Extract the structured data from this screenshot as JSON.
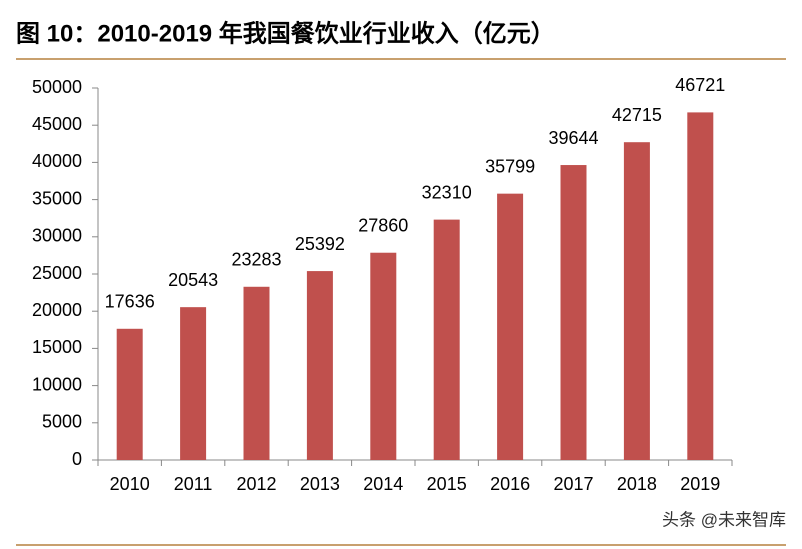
{
  "chart_data": {
    "type": "bar",
    "title": "图 10：2010-2019 年我国餐饮业行业收入（亿元）",
    "categories": [
      "2010",
      "2011",
      "2012",
      "2013",
      "2014",
      "2015",
      "2016",
      "2017",
      "2018",
      "2019"
    ],
    "values": [
      17636,
      20543,
      23283,
      25392,
      27860,
      32310,
      35799,
      39644,
      42715,
      46721
    ],
    "color": "#c0504d",
    "ylim": [
      0,
      50000
    ],
    "yticks": [
      0,
      5000,
      10000,
      15000,
      20000,
      25000,
      30000,
      35000,
      40000,
      45000,
      50000
    ],
    "grid": false,
    "watermark": "头条 @未来智库"
  }
}
